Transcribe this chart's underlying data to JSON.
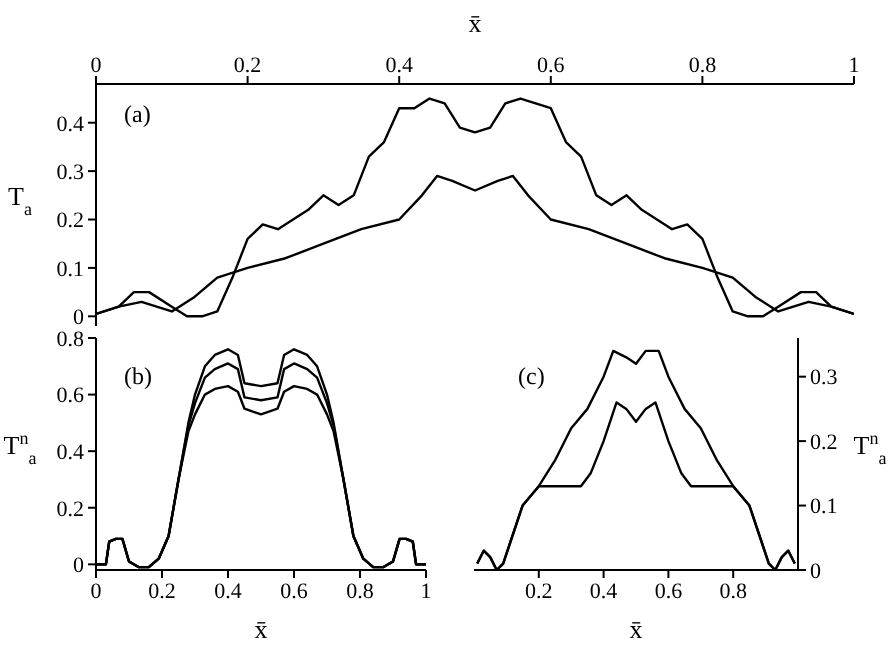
{
  "chart_data": [
    {
      "type": "line",
      "xlabel": "x̄",
      "ylabel": "T$_{a}$",
      "xlim": [
        0,
        1
      ],
      "xticks": [
        0,
        0.2,
        0.4,
        0.6,
        0.8,
        1
      ],
      "ylim": [
        -0.02,
        0.48
      ],
      "yticks": [
        0,
        0.1,
        0.2,
        0.3,
        0.4
      ],
      "annotations": [
        "(a)"
      ],
      "series": [
        {
          "color": "#000000",
          "x": [
            0,
            0.03,
            0.05,
            0.07,
            0.1,
            0.12,
            0.14,
            0.16,
            0.18,
            0.2,
            0.22,
            0.24,
            0.26,
            0.28,
            0.3,
            0.32,
            0.34,
            0.36,
            0.38,
            0.4,
            0.42,
            0.44,
            0.46,
            0.48,
            0.5,
            0.52,
            0.54,
            0.56,
            0.58,
            0.6,
            0.62,
            0.64,
            0.66,
            0.68,
            0.7,
            0.72,
            0.74,
            0.76,
            0.78,
            0.8,
            0.82,
            0.84,
            0.86,
            0.88,
            0.9,
            0.93,
            0.95,
            0.97,
            1
          ],
          "values": [
            0.005,
            0.02,
            0.05,
            0.05,
            0.02,
            0,
            0,
            0.01,
            0.08,
            0.16,
            0.19,
            0.18,
            0.2,
            0.22,
            0.25,
            0.23,
            0.25,
            0.33,
            0.36,
            0.43,
            0.43,
            0.45,
            0.44,
            0.39,
            0.38,
            0.39,
            0.44,
            0.45,
            0.44,
            0.43,
            0.36,
            0.33,
            0.25,
            0.23,
            0.25,
            0.22,
            0.2,
            0.18,
            0.19,
            0.16,
            0.08,
            0.01,
            0,
            0,
            0.02,
            0.05,
            0.05,
            0.02,
            0.005
          ]
        },
        {
          "color": "#000000",
          "x": [
            0,
            0.03,
            0.06,
            0.1,
            0.13,
            0.16,
            0.2,
            0.25,
            0.3,
            0.35,
            0.4,
            0.43,
            0.45,
            0.47,
            0.5,
            0.53,
            0.55,
            0.57,
            0.6,
            0.65,
            0.7,
            0.75,
            0.8,
            0.84,
            0.87,
            0.9,
            0.94,
            0.97,
            1
          ],
          "values": [
            0.005,
            0.02,
            0.03,
            0.01,
            0.04,
            0.08,
            0.1,
            0.12,
            0.15,
            0.18,
            0.2,
            0.25,
            0.29,
            0.28,
            0.26,
            0.28,
            0.29,
            0.25,
            0.2,
            0.18,
            0.15,
            0.12,
            0.1,
            0.08,
            0.04,
            0.01,
            0.03,
            0.02,
            0.005
          ]
        }
      ]
    },
    {
      "type": "line",
      "xlabel": "x̄",
      "ylabel": "T$^{n}$$_{a}$",
      "xlim": [
        0,
        1
      ],
      "xticks": [
        0,
        0.2,
        0.4,
        0.6,
        0.8,
        1
      ],
      "ylim": [
        -0.02,
        0.8
      ],
      "yticks": [
        0,
        0.2,
        0.4,
        0.6,
        0.8
      ],
      "annotations": [
        "(b)"
      ],
      "series": [
        {
          "color": "#000000",
          "x": [
            0,
            0.03,
            0.04,
            0.06,
            0.08,
            0.1,
            0.13,
            0.16,
            0.19,
            0.22,
            0.25,
            0.28,
            0.3,
            0.33,
            0.36,
            0.4,
            0.43,
            0.45,
            0.5,
            0.55,
            0.57,
            0.6,
            0.64,
            0.67,
            0.7,
            0.72,
            0.75,
            0.78,
            0.81,
            0.84,
            0.87,
            0.9,
            0.92,
            0.94,
            0.96,
            0.97,
            1
          ],
          "values": [
            0,
            0,
            0.08,
            0.09,
            0.09,
            0.01,
            -0.01,
            -0.01,
            0.02,
            0.1,
            0.3,
            0.5,
            0.6,
            0.7,
            0.74,
            0.76,
            0.74,
            0.64,
            0.63,
            0.64,
            0.74,
            0.76,
            0.74,
            0.7,
            0.6,
            0.5,
            0.3,
            0.1,
            0.02,
            -0.01,
            -0.01,
            0.01,
            0.09,
            0.09,
            0.08,
            0,
            0
          ]
        },
        {
          "color": "#000000",
          "x": [
            0,
            0.03,
            0.04,
            0.06,
            0.08,
            0.1,
            0.13,
            0.16,
            0.19,
            0.22,
            0.25,
            0.28,
            0.3,
            0.33,
            0.36,
            0.4,
            0.43,
            0.45,
            0.5,
            0.55,
            0.57,
            0.6,
            0.64,
            0.67,
            0.7,
            0.72,
            0.75,
            0.78,
            0.81,
            0.84,
            0.87,
            0.9,
            0.92,
            0.94,
            0.96,
            0.97,
            1
          ],
          "values": [
            0,
            0,
            0.08,
            0.09,
            0.09,
            0.01,
            -0.01,
            -0.01,
            0.02,
            0.1,
            0.3,
            0.49,
            0.57,
            0.66,
            0.69,
            0.71,
            0.69,
            0.59,
            0.58,
            0.59,
            0.69,
            0.71,
            0.69,
            0.66,
            0.57,
            0.49,
            0.3,
            0.1,
            0.02,
            -0.01,
            -0.01,
            0.01,
            0.09,
            0.09,
            0.08,
            0,
            0
          ]
        },
        {
          "color": "#000000",
          "x": [
            0,
            0.03,
            0.04,
            0.06,
            0.08,
            0.1,
            0.13,
            0.16,
            0.19,
            0.22,
            0.25,
            0.28,
            0.3,
            0.33,
            0.36,
            0.4,
            0.43,
            0.45,
            0.5,
            0.55,
            0.57,
            0.6,
            0.64,
            0.67,
            0.7,
            0.72,
            0.75,
            0.78,
            0.81,
            0.84,
            0.87,
            0.9,
            0.92,
            0.94,
            0.96,
            0.97,
            1
          ],
          "values": [
            0,
            0,
            0.08,
            0.09,
            0.09,
            0.01,
            -0.01,
            -0.01,
            0.02,
            0.1,
            0.3,
            0.47,
            0.53,
            0.6,
            0.62,
            0.63,
            0.61,
            0.55,
            0.53,
            0.55,
            0.61,
            0.63,
            0.62,
            0.6,
            0.53,
            0.47,
            0.3,
            0.1,
            0.02,
            -0.01,
            -0.01,
            0.01,
            0.09,
            0.09,
            0.08,
            0,
            0
          ]
        }
      ]
    },
    {
      "type": "line",
      "xlabel": "x̄",
      "y2label": "T$^{n}$$_{a}$",
      "xlim": [
        0,
        1
      ],
      "xticks": [
        0.2,
        0.4,
        0.6,
        0.8
      ],
      "y2lim": [
        0,
        0.36
      ],
      "y2ticks": [
        0,
        0.1,
        0.2,
        0.3
      ],
      "annotations": [
        "(c)"
      ],
      "series": [
        {
          "color": "#000000",
          "axis": "y2",
          "x": [
            0.01,
            0.03,
            0.05,
            0.07,
            0.09,
            0.15,
            0.2,
            0.25,
            0.3,
            0.35,
            0.4,
            0.43,
            0.47,
            0.5,
            0.53,
            0.57,
            0.6,
            0.65,
            0.7,
            0.75,
            0.8,
            0.85,
            0.91,
            0.93,
            0.95,
            0.97,
            0.99
          ],
          "values": [
            0.01,
            0.03,
            0.02,
            0,
            0.01,
            0.1,
            0.13,
            0.17,
            0.22,
            0.25,
            0.3,
            0.34,
            0.33,
            0.32,
            0.34,
            0.34,
            0.3,
            0.25,
            0.22,
            0.17,
            0.13,
            0.1,
            0.01,
            0,
            0.02,
            0.03,
            0.01
          ]
        },
        {
          "color": "#000000",
          "axis": "y2",
          "x": [
            0.01,
            0.03,
            0.05,
            0.07,
            0.09,
            0.15,
            0.2,
            0.33,
            0.36,
            0.4,
            0.44,
            0.47,
            0.5,
            0.53,
            0.56,
            0.6,
            0.64,
            0.67,
            0.8,
            0.85,
            0.91,
            0.93,
            0.95,
            0.97,
            0.99
          ],
          "values": [
            0.01,
            0.03,
            0.02,
            0,
            0.01,
            0.1,
            0.13,
            0.13,
            0.15,
            0.2,
            0.26,
            0.25,
            0.23,
            0.25,
            0.26,
            0.2,
            0.15,
            0.13,
            0.13,
            0.1,
            0.01,
            0,
            0.02,
            0.03,
            0.01
          ]
        }
      ]
    }
  ]
}
